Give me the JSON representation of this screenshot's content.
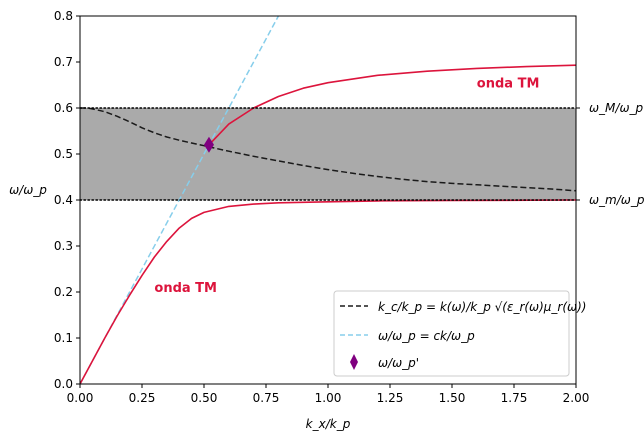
{
  "chart_data": {
    "type": "line",
    "title": "",
    "xlabel": "k_x/k_p",
    "ylabel": "ω/ω_p",
    "xlim": [
      0.0,
      2.0
    ],
    "ylim": [
      0.0,
      0.8
    ],
    "grid": false,
    "xticks": [
      {
        "value": 0.0,
        "label": "0.00"
      },
      {
        "value": 0.25,
        "label": "0.25"
      },
      {
        "value": 0.5,
        "label": "0.50"
      },
      {
        "value": 0.75,
        "label": "0.75"
      },
      {
        "value": 1.0,
        "label": "1.00"
      },
      {
        "value": 1.25,
        "label": "1.25"
      },
      {
        "value": 1.5,
        "label": "1.50"
      },
      {
        "value": 1.75,
        "label": "1.75"
      },
      {
        "value": 2.0,
        "label": "2.00"
      }
    ],
    "yticks": [
      {
        "value": 0.0,
        "label": "0.0"
      },
      {
        "value": 0.1,
        "label": "0.1"
      },
      {
        "value": 0.2,
        "label": "0.2"
      },
      {
        "value": 0.3,
        "label": "0.3"
      },
      {
        "value": 0.4,
        "label": "0.4"
      },
      {
        "value": 0.5,
        "label": "0.5"
      },
      {
        "value": 0.6,
        "label": "0.6"
      },
      {
        "value": 0.7,
        "label": "0.7"
      },
      {
        "value": 0.8,
        "label": "0.8"
      }
    ],
    "band": {
      "ymin": 0.4,
      "ymax": 0.6,
      "color": "#aaaaaa"
    },
    "hlines": [
      {
        "value": 0.6,
        "label": "ω_M/ω_p",
        "style": "dotted",
        "color": "#000000"
      },
      {
        "value": 0.4,
        "label": "ω_m/ω_p",
        "style": "dotted",
        "color": "#000000"
      }
    ],
    "series": [
      {
        "name": "k_c/k_p = k(ω)/k_p √(ε_r(ω)μ_r(ω))",
        "style": "dashed",
        "color": "#1a1a1a",
        "x": [
          0.0,
          0.03,
          0.06,
          0.1,
          0.15,
          0.2,
          0.25,
          0.3,
          0.35,
          0.4,
          0.45,
          0.5,
          0.55,
          0.6,
          0.7,
          0.8,
          0.9,
          1.0,
          1.1,
          1.2,
          1.3,
          1.4,
          1.5,
          1.6,
          1.7,
          1.8,
          1.9,
          2.0
        ],
        "y": [
          0.6,
          0.6,
          0.597,
          0.592,
          0.582,
          0.57,
          0.557,
          0.546,
          0.537,
          0.53,
          0.524,
          0.518,
          0.512,
          0.506,
          0.495,
          0.485,
          0.475,
          0.466,
          0.458,
          0.451,
          0.445,
          0.44,
          0.436,
          0.433,
          0.43,
          0.427,
          0.424,
          0.42
        ]
      },
      {
        "name": "ω/ω_p = ck/ω_p",
        "style": "dashed",
        "color": "#87ceeb",
        "x": [
          0.0,
          0.8
        ],
        "y": [
          0.0,
          0.8
        ]
      },
      {
        "name": "",
        "style": "solid",
        "color": "#dc143c",
        "x": [
          0.0,
          0.05,
          0.1,
          0.15,
          0.2,
          0.25,
          0.3,
          0.35,
          0.4,
          0.45,
          0.5,
          0.6,
          0.7,
          0.8,
          1.0,
          1.2,
          1.5,
          2.0
        ],
        "y": [
          0.0,
          0.05,
          0.1,
          0.148,
          0.193,
          0.236,
          0.276,
          0.31,
          0.339,
          0.36,
          0.373,
          0.386,
          0.391,
          0.394,
          0.396,
          0.398,
          0.399,
          0.4
        ]
      },
      {
        "name": "",
        "style": "solid",
        "color": "#dc143c",
        "x": [
          0.52,
          0.6,
          0.7,
          0.8,
          0.9,
          1.0,
          1.2,
          1.4,
          1.6,
          1.8,
          2.0
        ],
        "y": [
          0.52,
          0.565,
          0.6,
          0.625,
          0.643,
          0.655,
          0.671,
          0.68,
          0.686,
          0.69,
          0.693
        ]
      }
    ],
    "markers": [
      {
        "name": "ω/ω_p'",
        "x": 0.52,
        "y": 0.52,
        "shape": "thin_diamond",
        "color": "#800080"
      }
    ],
    "annotations": [
      {
        "text": "onda TM",
        "x": 1.6,
        "y": 0.645,
        "color": "#dc143c"
      },
      {
        "text": "onda TM",
        "x": 0.3,
        "y": 0.2,
        "color": "#dc143c"
      }
    ],
    "legend": {
      "position": "lower-right"
    }
  }
}
